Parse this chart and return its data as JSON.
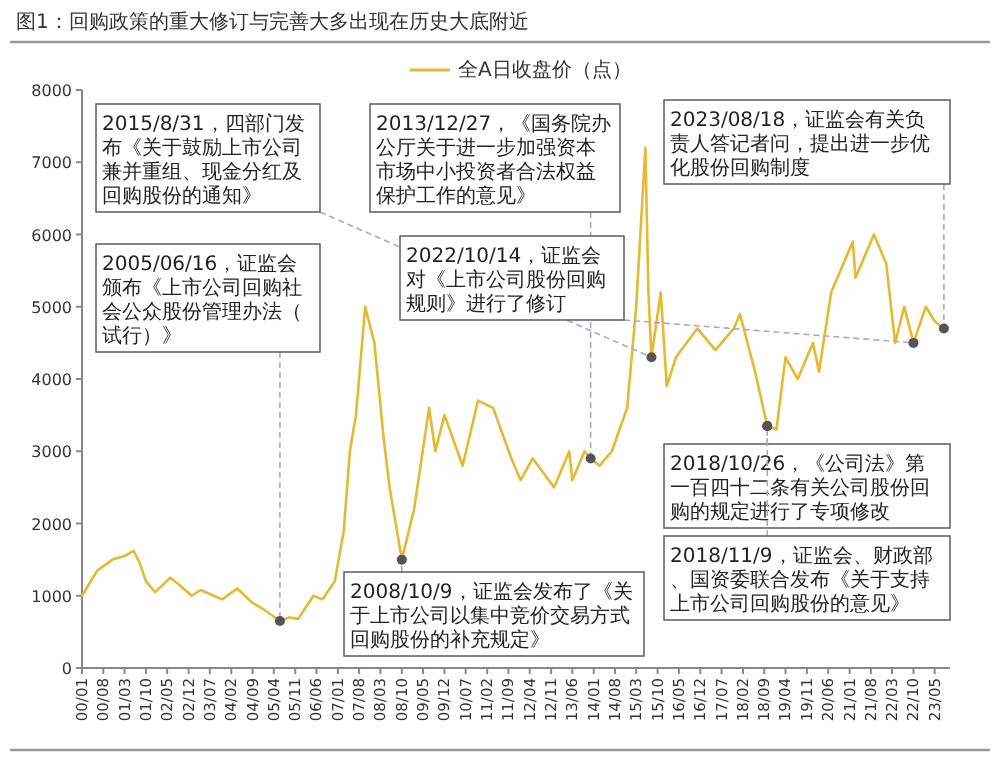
{
  "chart_data": {
    "type": "line",
    "title": "图1：回购政策的重大修订与完善大多出现在历史大底附近",
    "x": [
      "2000-01",
      "2000-06",
      "2000-11",
      "2001-03",
      "2001-06",
      "2001-08",
      "2001-10",
      "2002-01",
      "2002-06",
      "2002-09",
      "2003-01",
      "2003-04",
      "2003-11",
      "2004-04",
      "2004-09",
      "2005-01",
      "2005-06",
      "2005-09",
      "2005-12",
      "2006-05",
      "2006-08",
      "2006-12",
      "2007-03",
      "2007-05",
      "2007-07",
      "2007-10",
      "2008-01",
      "2008-04",
      "2008-06",
      "2008-10",
      "2009-02",
      "2009-07",
      "2009-09",
      "2009-12",
      "2010-06",
      "2010-11",
      "2011-04",
      "2011-10",
      "2012-01",
      "2012-05",
      "2012-12",
      "2013-05",
      "2013-06",
      "2013-10",
      "2013-12",
      "2014-03",
      "2014-07",
      "2014-12",
      "2015-03",
      "2015-06",
      "2015-07",
      "2015-08",
      "2015-11",
      "2016-01",
      "2016-04",
      "2016-11",
      "2017-05",
      "2017-11",
      "2018-01",
      "2018-06",
      "2018-10",
      "2019-01",
      "2019-04",
      "2019-08",
      "2020-01",
      "2020-03",
      "2020-07",
      "2021-02",
      "2021-03",
      "2021-09",
      "2022-01",
      "2022-04",
      "2022-07",
      "2022-10",
      "2023-02",
      "2023-05",
      "2023-08"
    ],
    "series": [
      {
        "name": "全A日收盘价（点）",
        "color": "#e8b830",
        "values": [
          1000,
          1350,
          1500,
          1550,
          1620,
          1450,
          1200,
          1050,
          1250,
          1150,
          1000,
          1080,
          950,
          1100,
          900,
          800,
          650,
          700,
          680,
          1000,
          950,
          1200,
          1900,
          3000,
          3500,
          5000,
          4500,
          3200,
          2500,
          1500,
          2200,
          3600,
          3000,
          3500,
          2800,
          3700,
          3600,
          2900,
          2600,
          2900,
          2500,
          3000,
          2600,
          3000,
          2900,
          2800,
          3000,
          3600,
          5000,
          7200,
          5200,
          4300,
          5200,
          3900,
          4300,
          4700,
          4400,
          4700,
          4900,
          4100,
          3350,
          3300,
          4300,
          4000,
          4500,
          4100,
          5200,
          5900,
          5400,
          6000,
          5600,
          4500,
          5000,
          4500,
          5000,
          4800,
          4700
        ]
      }
    ],
    "xlim": [
      "2000-01",
      "2023-10"
    ],
    "xticks": [
      {
        "value": "2000-01",
        "label": "00/01"
      },
      {
        "value": "2000-08",
        "label": "00/08"
      },
      {
        "value": "2001-03",
        "label": "01/03"
      },
      {
        "value": "2001-10",
        "label": "01/10"
      },
      {
        "value": "2002-05",
        "label": "02/05"
      },
      {
        "value": "2002-12",
        "label": "02/12"
      },
      {
        "value": "2003-07",
        "label": "03/07"
      },
      {
        "value": "2004-02",
        "label": "04/02"
      },
      {
        "value": "2004-09",
        "label": "04/09"
      },
      {
        "value": "2005-04",
        "label": "05/04"
      },
      {
        "value": "2005-11",
        "label": "05/11"
      },
      {
        "value": "2006-06",
        "label": "06/06"
      },
      {
        "value": "2007-01",
        "label": "07/01"
      },
      {
        "value": "2007-08",
        "label": "07/08"
      },
      {
        "value": "2008-03",
        "label": "08/03"
      },
      {
        "value": "2008-10",
        "label": "08/10"
      },
      {
        "value": "2009-05",
        "label": "09/05"
      },
      {
        "value": "2009-12",
        "label": "09/12"
      },
      {
        "value": "2010-07",
        "label": "10/07"
      },
      {
        "value": "2011-02",
        "label": "11/02"
      },
      {
        "value": "2011-09",
        "label": "11/09"
      },
      {
        "value": "2012-04",
        "label": "12/04"
      },
      {
        "value": "2012-11",
        "label": "12/11"
      },
      {
        "value": "2013-06",
        "label": "13/06"
      },
      {
        "value": "2014-01",
        "label": "14/01"
      },
      {
        "value": "2014-08",
        "label": "14/08"
      },
      {
        "value": "2015-03",
        "label": "15/03"
      },
      {
        "value": "2015-10",
        "label": "15/10"
      },
      {
        "value": "2016-05",
        "label": "16/05"
      },
      {
        "value": "2016-12",
        "label": "16/12"
      },
      {
        "value": "2017-07",
        "label": "17/07"
      },
      {
        "value": "2018-02",
        "label": "18/02"
      },
      {
        "value": "2018-09",
        "label": "18/09"
      },
      {
        "value": "2019-04",
        "label": "19/04"
      },
      {
        "value": "2019-11",
        "label": "19/11"
      },
      {
        "value": "2020-06",
        "label": "20/06"
      },
      {
        "value": "2021-01",
        "label": "21/01"
      },
      {
        "value": "2021-08",
        "label": "21/08"
      },
      {
        "value": "2022-03",
        "label": "22/03"
      },
      {
        "value": "2022-10",
        "label": "22/10"
      },
      {
        "value": "2023-05",
        "label": "23/05"
      }
    ],
    "ylim": [
      0,
      8000
    ],
    "yticks": [
      0,
      1000,
      2000,
      3000,
      4000,
      5000,
      6000,
      7000,
      8000
    ],
    "grid": false,
    "legend": "top",
    "annotations": [
      {
        "text": "2015/8/31，四部门发布《关于鼓励上市公司兼并重组、现金分红及回购股份的通知》",
        "x": "2015-08",
        "y": 4300
      },
      {
        "text": "2005/06/16，证监会颁布《上市公司回购社会公众股份管理办法（试行）》",
        "x": "2005-06",
        "y": 650
      },
      {
        "text": "2013/12/27，《国务院办公厅关于进一步加强资本市场中小投资者合法权益保护工作的意见》",
        "x": "2013-12",
        "y": 2900
      },
      {
        "text": "2022/10/14，证监会对《上市公司股份回购规则》进行了修订",
        "x": "2022-10",
        "y": 4500
      },
      {
        "text": "2023/08/18，证监会有关负责人答记者问，提出进一步优化股份回购制度",
        "x": "2023-08",
        "y": 4700
      },
      {
        "text": "2018/10/26，《公司法》第一百四十二条有关公司股份回购的规定进行了专项修改",
        "x": "2018-10",
        "y": 3350
      },
      {
        "text": "2018/11/9，证监会、财政部、国资委联合发布《关于支持上市公司回购股份的意见》",
        "x": "2018-10",
        "y": 3350
      },
      {
        "text": "2008/10/9，证监会发布了《关于上市公司以集中竞价交易方式回购股份的补充规定》",
        "x": "2008-10",
        "y": 1500
      }
    ]
  }
}
